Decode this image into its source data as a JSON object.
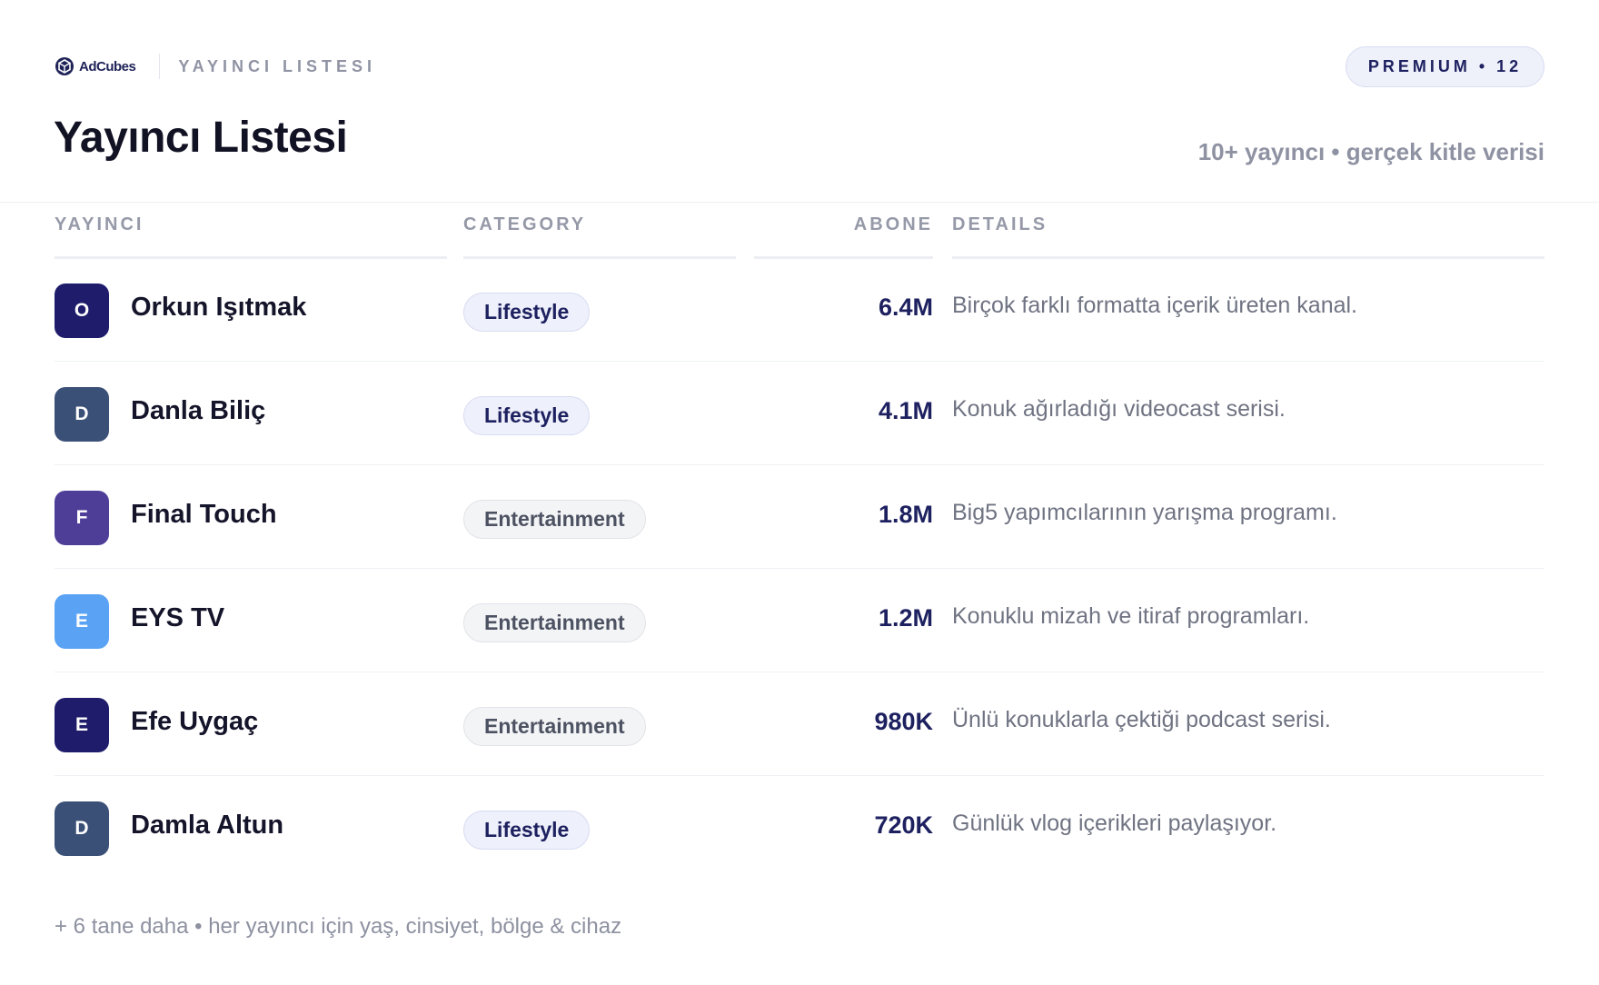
{
  "brand": {
    "logo_text": "AdCubes",
    "eyebrow": "YAYINCI LISTESI",
    "badge": "PREMIUM • 12"
  },
  "header": {
    "title": "Yayıncı Listesi",
    "subtitle": "10+ yayıncı • gerçek kitle verisi"
  },
  "columns": {
    "publisher": "YAYINCI",
    "category": "CATEGORY",
    "subscribers": "ABONE",
    "details": "DETAILS"
  },
  "rows": [
    {
      "initial": "O",
      "name": "Orkun Işıtmak",
      "category": "Lifestyle",
      "category_kind": "lifestyle",
      "subscribers": "6.4M",
      "details": "Birçok farklı formatta içerik üreten kanal.",
      "avatar_color": "#1e1c6b"
    },
    {
      "initial": "D",
      "name": "Danla Biliç",
      "category": "Lifestyle",
      "category_kind": "lifestyle",
      "subscribers": "4.1M",
      "details": "Konuk ağırladığı videocast serisi.",
      "avatar_color": "#3b5077"
    },
    {
      "initial": "F",
      "name": "Final Touch",
      "category": "Entertainment",
      "category_kind": "entertainment",
      "subscribers": "1.8M",
      "details": "Big5 yapımcılarının yarışma programı.",
      "avatar_color": "#4f3e98"
    },
    {
      "initial": "E",
      "name": "EYS TV",
      "category": "Entertainment",
      "category_kind": "entertainment",
      "subscribers": "1.2M",
      "details": "Konuklu mizah ve itiraf programları.",
      "avatar_color": "#5aa2f3"
    },
    {
      "initial": "E",
      "name": "Efe Uygaç",
      "category": "Entertainment",
      "category_kind": "entertainment",
      "subscribers": "980K",
      "details": "Ünlü konuklarla çektiği podcast serisi.",
      "avatar_color": "#1e1c6b"
    },
    {
      "initial": "D",
      "name": "Damla Altun",
      "category": "Lifestyle",
      "category_kind": "lifestyle",
      "subscribers": "720K",
      "details": "Günlük vlog içerikleri paylaşıyor.",
      "avatar_color": "#3b5077"
    }
  ],
  "footer": {
    "note": "+ 6 tane daha • her yayıncı için yaş, cinsiyet, bölge & cihaz"
  }
}
